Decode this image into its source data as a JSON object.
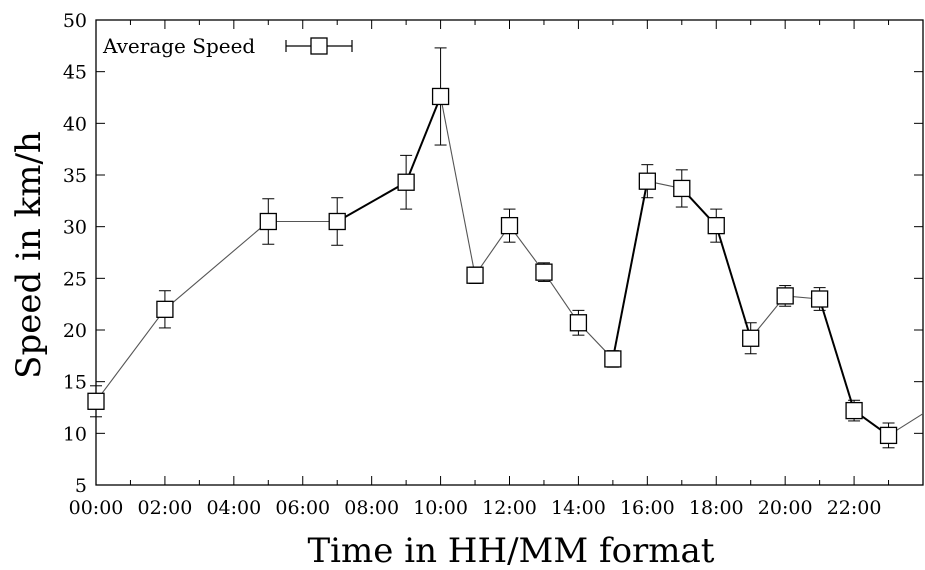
{
  "chart_data": {
    "type": "line",
    "title": "",
    "xlabel": "Time in HH/MM format",
    "ylabel": "Speed in km/h",
    "xlim": [
      0,
      24
    ],
    "ylim": [
      5,
      50
    ],
    "grid": false,
    "legend_position": "top-left",
    "x_tick_labels": [
      "00:00",
      "02:00",
      "04:00",
      "06:00",
      "08:00",
      "10:00",
      "12:00",
      "14:00",
      "16:00",
      "18:00",
      "20:00",
      "22:00"
    ],
    "y_ticks": [
      5,
      10,
      15,
      20,
      25,
      30,
      35,
      40,
      45,
      50
    ],
    "series": [
      {
        "name": "Average Speed",
        "marker": "open-square",
        "x": [
          0,
          2,
          5,
          7,
          9,
          10,
          11,
          12,
          13,
          14,
          15,
          16,
          17,
          18,
          19,
          20,
          21,
          22,
          23,
          24
        ],
        "y": [
          13.1,
          22.0,
          30.5,
          30.5,
          34.3,
          42.6,
          25.3,
          30.1,
          25.6,
          20.7,
          17.2,
          34.4,
          33.7,
          30.1,
          19.2,
          23.3,
          23.0,
          12.2,
          9.8,
          11.9
        ],
        "err": [
          1.5,
          1.8,
          2.2,
          2.3,
          2.6,
          4.7,
          0.8,
          1.6,
          0.9,
          1.2,
          0.8,
          1.6,
          1.8,
          1.6,
          1.5,
          1.0,
          1.1,
          1.0,
          1.2,
          null
        ]
      }
    ],
    "segments_bold": [
      [
        1,
        3
      ],
      [
        3,
        4
      ],
      [
        4,
        5
      ],
      [
        10,
        11
      ],
      [
        12,
        13
      ],
      [
        13,
        14
      ],
      [
        16,
        17
      ],
      [
        17,
        18
      ]
    ],
    "colors": {
      "axis": "#000000",
      "line_bold": "#000000",
      "line_thin": "#555555"
    }
  }
}
